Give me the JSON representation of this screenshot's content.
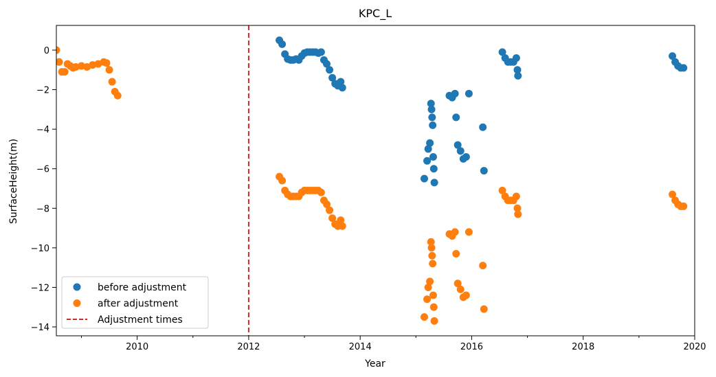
{
  "chart_data": {
    "type": "scatter",
    "title": "KPC_L",
    "xlabel": "Year",
    "ylabel": "SurfaceHeight(m)",
    "xlim": [
      2008.55,
      2020.0
    ],
    "ylim": [
      -14.45,
      1.25
    ],
    "xticks": [
      2010,
      2012,
      2014,
      2016,
      2018,
      2020
    ],
    "xtick_labels": [
      "2010",
      "2012",
      "2014",
      "2016",
      "2018",
      "2020"
    ],
    "yticks": [
      0,
      -2,
      -4,
      -6,
      -8,
      -10,
      -12,
      -14
    ],
    "ytick_labels": [
      "0",
      "−2",
      "−4",
      "−6",
      "−8",
      "−10",
      "−12",
      "−14"
    ],
    "grid": false,
    "legend_position": "lower-left",
    "series": [
      {
        "name": "before adjustment",
        "color": "#1f77b4",
        "x": [
          2012.55,
          2012.6,
          2012.65,
          2012.7,
          2012.75,
          2012.8,
          2012.85,
          2012.9,
          2012.95,
          2013.0,
          2013.05,
          2013.1,
          2013.15,
          2013.2,
          2013.25,
          2013.3,
          2013.35,
          2013.4,
          2013.45,
          2013.5,
          2013.55,
          2013.6,
          2013.65,
          2013.68,
          2015.15,
          2015.2,
          2015.22,
          2015.25,
          2015.27,
          2015.28,
          2015.29,
          2015.3,
          2015.31,
          2015.32,
          2015.33,
          2015.6,
          2015.65,
          2015.7,
          2015.72,
          2015.75,
          2015.8,
          2015.85,
          2015.9,
          2015.95,
          2016.2,
          2016.22,
          2016.55,
          2016.6,
          2016.65,
          2016.7,
          2016.75,
          2016.8,
          2016.82,
          2016.83,
          2019.6,
          2019.65,
          2019.7,
          2019.75,
          2019.8
        ],
        "y": [
          0.5,
          0.3,
          -0.2,
          -0.45,
          -0.5,
          -0.5,
          -0.45,
          -0.5,
          -0.3,
          -0.15,
          -0.1,
          -0.1,
          -0.1,
          -0.1,
          -0.15,
          -0.1,
          -0.5,
          -0.7,
          -1.0,
          -1.4,
          -1.7,
          -1.8,
          -1.6,
          -1.9,
          -6.5,
          -5.6,
          -5.0,
          -4.7,
          -2.7,
          -3.0,
          -3.4,
          -3.8,
          -5.4,
          -6.0,
          -6.7,
          -2.3,
          -2.4,
          -2.2,
          -3.4,
          -4.8,
          -5.1,
          -5.5,
          -5.4,
          -2.2,
          -3.9,
          -6.1,
          -0.1,
          -0.4,
          -0.6,
          -0.6,
          -0.6,
          -0.4,
          -1.0,
          -1.3,
          -0.3,
          -0.6,
          -0.8,
          -0.9,
          -0.9
        ]
      },
      {
        "name": "after adjustment",
        "color": "#ff7f0e",
        "x": [
          2008.55,
          2008.6,
          2008.65,
          2008.7,
          2008.75,
          2008.8,
          2008.85,
          2008.9,
          2009.0,
          2009.1,
          2009.2,
          2009.3,
          2009.4,
          2009.45,
          2009.5,
          2009.55,
          2009.6,
          2009.65,
          2012.55,
          2012.6,
          2012.65,
          2012.7,
          2012.75,
          2012.8,
          2012.85,
          2012.9,
          2012.95,
          2013.0,
          2013.05,
          2013.1,
          2013.15,
          2013.2,
          2013.25,
          2013.3,
          2013.35,
          2013.4,
          2013.45,
          2013.5,
          2013.55,
          2013.6,
          2013.65,
          2013.68,
          2015.15,
          2015.2,
          2015.22,
          2015.25,
          2015.27,
          2015.28,
          2015.29,
          2015.3,
          2015.31,
          2015.32,
          2015.33,
          2015.6,
          2015.65,
          2015.7,
          2015.72,
          2015.75,
          2015.8,
          2015.85,
          2015.9,
          2015.95,
          2016.2,
          2016.22,
          2016.55,
          2016.6,
          2016.65,
          2016.7,
          2016.75,
          2016.8,
          2016.82,
          2016.83,
          2019.6,
          2019.65,
          2019.7,
          2019.75,
          2019.8
        ],
        "y": [
          0.0,
          -0.6,
          -1.1,
          -1.1,
          -0.7,
          -0.8,
          -0.9,
          -0.85,
          -0.8,
          -0.85,
          -0.75,
          -0.7,
          -0.6,
          -0.65,
          -1.0,
          -1.6,
          -2.1,
          -2.3,
          -6.4,
          -6.6,
          -7.1,
          -7.3,
          -7.4,
          -7.4,
          -7.4,
          -7.4,
          -7.2,
          -7.1,
          -7.1,
          -7.1,
          -7.1,
          -7.1,
          -7.1,
          -7.2,
          -7.6,
          -7.8,
          -8.1,
          -8.5,
          -8.8,
          -8.9,
          -8.6,
          -8.9,
          -13.5,
          -12.6,
          -12.0,
          -11.7,
          -9.7,
          -10.0,
          -10.4,
          -10.8,
          -12.4,
          -13.0,
          -13.7,
          -9.3,
          -9.4,
          -9.2,
          -10.3,
          -11.8,
          -12.1,
          -12.5,
          -12.4,
          -9.2,
          -10.9,
          -13.1,
          -7.1,
          -7.4,
          -7.6,
          -7.6,
          -7.6,
          -7.4,
          -8.0,
          -8.3,
          -7.3,
          -7.6,
          -7.8,
          -7.9,
          -7.9
        ]
      }
    ],
    "reference_lines": [
      {
        "name": "Adjustment times",
        "orientation": "vertical",
        "x": 2012.0,
        "color": "#d62728",
        "style": "dashed"
      }
    ]
  }
}
